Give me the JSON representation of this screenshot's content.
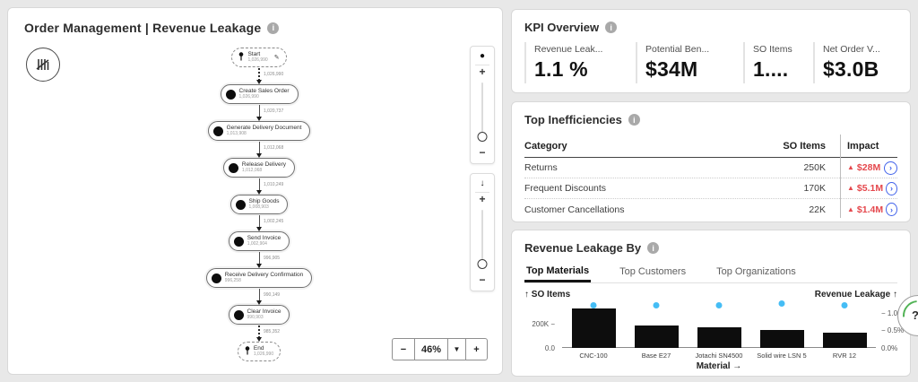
{
  "colors": {
    "red": "#e5484d",
    "blue": "#4263eb",
    "cyan": "#45bdf5",
    "bar": "#0d0d0d",
    "tab_underline": "#141414"
  },
  "left_panel": {
    "title": "Order Management | Revenue Leakage",
    "flow": {
      "nodes": [
        {
          "label": "Start",
          "count": "1,026,990",
          "type": "start"
        },
        {
          "label": "Create Sales Order",
          "count": "1,026,990",
          "type": "activity"
        },
        {
          "label": "Generate Delivery Document",
          "count": "1,013,908",
          "type": "activity"
        },
        {
          "label": "Release Delivery",
          "count": "1,012,068",
          "type": "activity"
        },
        {
          "label": "Ship Goods",
          "count": "1,008,903",
          "type": "activity"
        },
        {
          "label": "Send Invoice",
          "count": "1,002,904",
          "type": "activity"
        },
        {
          "label": "Receive Delivery Confirmation",
          "count": "996,258",
          "type": "activity"
        },
        {
          "label": "Clear Invoice",
          "count": "990,903",
          "type": "activity"
        },
        {
          "label": "End",
          "count": "1,026,990",
          "type": "end"
        }
      ],
      "edge_labels": [
        "1,026,990",
        "1,020,737",
        "1,012,068",
        "1,010,249",
        "1,002,245",
        "996,905",
        "990,149",
        "985,352"
      ]
    },
    "sliders": {
      "plus": "+",
      "minus": "−",
      "slider1_icon": "activity-dot",
      "slider2_icon": "arrow-down",
      "arrow": "↓",
      "dot": "●"
    },
    "zoom": {
      "minus": "−",
      "level": "46%",
      "caret": "▼",
      "plus": "+"
    }
  },
  "kpi": {
    "title": "KPI Overview",
    "items": [
      {
        "label": "Revenue Leak...",
        "value": "1.1 %"
      },
      {
        "label": "Potential Ben...",
        "value": "$34M"
      },
      {
        "label": "SO Items",
        "value": "1...."
      },
      {
        "label": "Net Order V...",
        "value": "$3.0B"
      }
    ]
  },
  "inefficiencies": {
    "title": "Top Inefficiencies",
    "headers": [
      "Category",
      "SO Items",
      "Impact"
    ],
    "rows": [
      {
        "category": "Returns",
        "so_items": "250K",
        "impact": "$28M"
      },
      {
        "category": "Frequent Discounts",
        "so_items": "170K",
        "impact": "$5.1M"
      },
      {
        "category": "Customer Cancellations",
        "so_items": "22K",
        "impact": "$1.4M"
      }
    ]
  },
  "leakage": {
    "title": "Revenue Leakage By",
    "tabs": [
      "Top Materials",
      "Top Customers",
      "Top Organizations"
    ],
    "active_tab": "Top Materials",
    "chart_data": {
      "type": "bar",
      "title": "Revenue Leakage By — Top Materials",
      "categories": [
        "CNC-100",
        "Base E27",
        "Jotachi SN4500",
        "Solid wire LSN 5",
        "RVR 12"
      ],
      "series": [
        {
          "name": "SO Items",
          "type": "bar",
          "axis": "left",
          "values": [
            330000,
            185000,
            170000,
            150000,
            130000
          ]
        },
        {
          "name": "Revenue Leakage",
          "type": "scatter",
          "axis": "right",
          "unit": "%",
          "values": [
            1.2,
            1.2,
            1.2,
            1.25,
            1.2
          ]
        }
      ],
      "xlabel": "Material →",
      "left_axis": {
        "label": "↑ SO Items",
        "range": [
          0,
          380000
        ],
        "ticks": [
          "200K −",
          "0.0"
        ],
        "tick_values": [
          200000,
          0
        ]
      },
      "right_axis": {
        "label": "Revenue Leakage ↑",
        "range": [
          0,
          1.3
        ],
        "ticks": [
          "− 1.0%",
          "− 0.5%",
          "0.0%"
        ],
        "tick_values": [
          1.0,
          0.5,
          0.0
        ]
      },
      "grid": false,
      "legend": false
    }
  },
  "help": {
    "label": "?"
  }
}
